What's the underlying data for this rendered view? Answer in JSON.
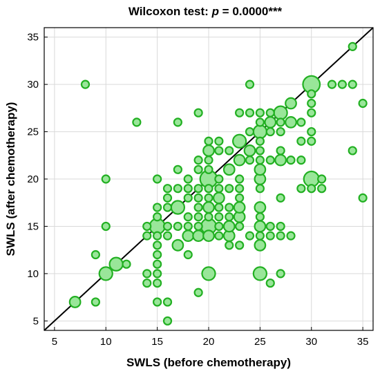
{
  "chart_data": {
    "type": "scatter",
    "title_prefix": "Wilcoxon test: ",
    "title_p": "p",
    "title_suffix": " = 0.0000***",
    "xlabel": "SWLS (before chemotherapy)",
    "ylabel": "SWLS (after chemotherapy)",
    "xlim": [
      4,
      36
    ],
    "ylim": [
      4,
      36
    ],
    "xticks": [
      5,
      10,
      15,
      20,
      25,
      30,
      35
    ],
    "yticks": [
      5,
      10,
      15,
      20,
      25,
      30,
      35
    ],
    "grid": true,
    "reference_line": "y = x",
    "colors": {
      "fill": "#99e699",
      "stroke": "#22b022",
      "line": "#000000",
      "grid": "#d9d9d9"
    },
    "points": [
      {
        "x": 7,
        "y": 7,
        "n": 2
      },
      {
        "x": 8,
        "y": 30,
        "n": 1
      },
      {
        "x": 9,
        "y": 7,
        "n": 1
      },
      {
        "x": 9,
        "y": 12,
        "n": 1
      },
      {
        "x": 10,
        "y": 10,
        "n": 3
      },
      {
        "x": 10,
        "y": 15,
        "n": 1
      },
      {
        "x": 10,
        "y": 20,
        "n": 1
      },
      {
        "x": 11,
        "y": 11,
        "n": 3
      },
      {
        "x": 12,
        "y": 11,
        "n": 1
      },
      {
        "x": 13,
        "y": 26,
        "n": 1
      },
      {
        "x": 14,
        "y": 9,
        "n": 1
      },
      {
        "x": 14,
        "y": 10,
        "n": 1
      },
      {
        "x": 14,
        "y": 14,
        "n": 1
      },
      {
        "x": 14,
        "y": 15,
        "n": 1
      },
      {
        "x": 15,
        "y": 7,
        "n": 1
      },
      {
        "x": 15,
        "y": 9,
        "n": 1
      },
      {
        "x": 15,
        "y": 10,
        "n": 1
      },
      {
        "x": 15,
        "y": 11,
        "n": 1
      },
      {
        "x": 15,
        "y": 12,
        "n": 1
      },
      {
        "x": 15,
        "y": 13,
        "n": 1
      },
      {
        "x": 15,
        "y": 14,
        "n": 1
      },
      {
        "x": 15,
        "y": 15,
        "n": 4
      },
      {
        "x": 15,
        "y": 16,
        "n": 1
      },
      {
        "x": 15,
        "y": 17,
        "n": 1
      },
      {
        "x": 15,
        "y": 20,
        "n": 1
      },
      {
        "x": 16,
        "y": 5,
        "n": 1
      },
      {
        "x": 16,
        "y": 7,
        "n": 1
      },
      {
        "x": 16,
        "y": 14,
        "n": 1
      },
      {
        "x": 16,
        "y": 15,
        "n": 1
      },
      {
        "x": 16,
        "y": 17,
        "n": 1
      },
      {
        "x": 16,
        "y": 18,
        "n": 1
      },
      {
        "x": 16,
        "y": 19,
        "n": 1
      },
      {
        "x": 17,
        "y": 13,
        "n": 2
      },
      {
        "x": 17,
        "y": 15,
        "n": 1
      },
      {
        "x": 17,
        "y": 17,
        "n": 3
      },
      {
        "x": 17,
        "y": 19,
        "n": 1
      },
      {
        "x": 17,
        "y": 21,
        "n": 1
      },
      {
        "x": 17,
        "y": 26,
        "n": 1
      },
      {
        "x": 18,
        "y": 12,
        "n": 1
      },
      {
        "x": 18,
        "y": 14,
        "n": 2
      },
      {
        "x": 18,
        "y": 15,
        "n": 1
      },
      {
        "x": 18,
        "y": 16,
        "n": 1
      },
      {
        "x": 18,
        "y": 18,
        "n": 1
      },
      {
        "x": 18,
        "y": 19,
        "n": 1
      },
      {
        "x": 18,
        "y": 20,
        "n": 1
      },
      {
        "x": 19,
        "y": 8,
        "n": 1
      },
      {
        "x": 19,
        "y": 14,
        "n": 2
      },
      {
        "x": 19,
        "y": 15,
        "n": 1
      },
      {
        "x": 19,
        "y": 16,
        "n": 1
      },
      {
        "x": 19,
        "y": 17,
        "n": 1
      },
      {
        "x": 19,
        "y": 18,
        "n": 1
      },
      {
        "x": 19,
        "y": 19,
        "n": 1
      },
      {
        "x": 19,
        "y": 21,
        "n": 1
      },
      {
        "x": 19,
        "y": 22,
        "n": 1
      },
      {
        "x": 19,
        "y": 27,
        "n": 1
      },
      {
        "x": 20,
        "y": 10,
        "n": 3
      },
      {
        "x": 20,
        "y": 14,
        "n": 2
      },
      {
        "x": 20,
        "y": 15,
        "n": 4
      },
      {
        "x": 20,
        "y": 16,
        "n": 1
      },
      {
        "x": 20,
        "y": 17,
        "n": 2
      },
      {
        "x": 20,
        "y": 18,
        "n": 1
      },
      {
        "x": 20,
        "y": 19,
        "n": 1
      },
      {
        "x": 20,
        "y": 20,
        "n": 5
      },
      {
        "x": 20,
        "y": 21,
        "n": 1
      },
      {
        "x": 20,
        "y": 22,
        "n": 1
      },
      {
        "x": 20,
        "y": 23,
        "n": 2
      },
      {
        "x": 20,
        "y": 24,
        "n": 1
      },
      {
        "x": 21,
        "y": 14,
        "n": 1
      },
      {
        "x": 21,
        "y": 15,
        "n": 1
      },
      {
        "x": 21,
        "y": 16,
        "n": 1
      },
      {
        "x": 21,
        "y": 17,
        "n": 1
      },
      {
        "x": 21,
        "y": 18,
        "n": 2
      },
      {
        "x": 21,
        "y": 19,
        "n": 1
      },
      {
        "x": 21,
        "y": 20,
        "n": 1
      },
      {
        "x": 21,
        "y": 23,
        "n": 1
      },
      {
        "x": 21,
        "y": 24,
        "n": 1
      },
      {
        "x": 22,
        "y": 13,
        "n": 1
      },
      {
        "x": 22,
        "y": 14,
        "n": 2
      },
      {
        "x": 22,
        "y": 15,
        "n": 2
      },
      {
        "x": 22,
        "y": 16,
        "n": 1
      },
      {
        "x": 22,
        "y": 17,
        "n": 1
      },
      {
        "x": 22,
        "y": 19,
        "n": 1
      },
      {
        "x": 22,
        "y": 21,
        "n": 2
      },
      {
        "x": 22,
        "y": 23,
        "n": 1
      },
      {
        "x": 23,
        "y": 13,
        "n": 1
      },
      {
        "x": 23,
        "y": 15,
        "n": 1
      },
      {
        "x": 23,
        "y": 16,
        "n": 2
      },
      {
        "x": 23,
        "y": 17,
        "n": 2
      },
      {
        "x": 23,
        "y": 18,
        "n": 1
      },
      {
        "x": 23,
        "y": 19,
        "n": 1
      },
      {
        "x": 23,
        "y": 20,
        "n": 1
      },
      {
        "x": 23,
        "y": 22,
        "n": 2
      },
      {
        "x": 23,
        "y": 24,
        "n": 3
      },
      {
        "x": 23,
        "y": 27,
        "n": 1
      },
      {
        "x": 24,
        "y": 14,
        "n": 1
      },
      {
        "x": 24,
        "y": 22,
        "n": 1
      },
      {
        "x": 24,
        "y": 23,
        "n": 2
      },
      {
        "x": 24,
        "y": 25,
        "n": 1
      },
      {
        "x": 24,
        "y": 27,
        "n": 1
      },
      {
        "x": 24,
        "y": 30,
        "n": 1
      },
      {
        "x": 25,
        "y": 10,
        "n": 3
      },
      {
        "x": 25,
        "y": 13,
        "n": 2
      },
      {
        "x": 25,
        "y": 14,
        "n": 1
      },
      {
        "x": 25,
        "y": 15,
        "n": 2
      },
      {
        "x": 25,
        "y": 16,
        "n": 1
      },
      {
        "x": 25,
        "y": 17,
        "n": 2
      },
      {
        "x": 25,
        "y": 19,
        "n": 1
      },
      {
        "x": 25,
        "y": 20,
        "n": 2
      },
      {
        "x": 25,
        "y": 21,
        "n": 2
      },
      {
        "x": 25,
        "y": 22,
        "n": 1
      },
      {
        "x": 25,
        "y": 23,
        "n": 1
      },
      {
        "x": 25,
        "y": 24,
        "n": 1
      },
      {
        "x": 25,
        "y": 25,
        "n": 3
      },
      {
        "x": 25,
        "y": 26,
        "n": 1
      },
      {
        "x": 25,
        "y": 27,
        "n": 1
      },
      {
        "x": 26,
        "y": 9,
        "n": 1
      },
      {
        "x": 26,
        "y": 14,
        "n": 1
      },
      {
        "x": 26,
        "y": 15,
        "n": 1
      },
      {
        "x": 26,
        "y": 22,
        "n": 1
      },
      {
        "x": 26,
        "y": 25,
        "n": 1
      },
      {
        "x": 26,
        "y": 26,
        "n": 2
      },
      {
        "x": 26,
        "y": 27,
        "n": 1
      },
      {
        "x": 27,
        "y": 10,
        "n": 1
      },
      {
        "x": 27,
        "y": 14,
        "n": 1
      },
      {
        "x": 27,
        "y": 15,
        "n": 1
      },
      {
        "x": 27,
        "y": 18,
        "n": 1
      },
      {
        "x": 27,
        "y": 22,
        "n": 2
      },
      {
        "x": 27,
        "y": 23,
        "n": 1
      },
      {
        "x": 27,
        "y": 25,
        "n": 1
      },
      {
        "x": 27,
        "y": 26,
        "n": 1
      },
      {
        "x": 27,
        "y": 27,
        "n": 3
      },
      {
        "x": 28,
        "y": 14,
        "n": 1
      },
      {
        "x": 28,
        "y": 22,
        "n": 1
      },
      {
        "x": 28,
        "y": 26,
        "n": 2
      },
      {
        "x": 28,
        "y": 28,
        "n": 2
      },
      {
        "x": 29,
        "y": 19,
        "n": 1
      },
      {
        "x": 29,
        "y": 22,
        "n": 1
      },
      {
        "x": 29,
        "y": 24,
        "n": 1
      },
      {
        "x": 29,
        "y": 26,
        "n": 1
      },
      {
        "x": 30,
        "y": 19,
        "n": 1
      },
      {
        "x": 30,
        "y": 20,
        "n": 4
      },
      {
        "x": 30,
        "y": 24,
        "n": 1
      },
      {
        "x": 30,
        "y": 25,
        "n": 1
      },
      {
        "x": 30,
        "y": 27,
        "n": 1
      },
      {
        "x": 30,
        "y": 28,
        "n": 1
      },
      {
        "x": 30,
        "y": 29,
        "n": 1
      },
      {
        "x": 30,
        "y": 30,
        "n": 5
      },
      {
        "x": 31,
        "y": 19,
        "n": 1
      },
      {
        "x": 31,
        "y": 20,
        "n": 1
      },
      {
        "x": 32,
        "y": 30,
        "n": 1
      },
      {
        "x": 33,
        "y": 30,
        "n": 1
      },
      {
        "x": 34,
        "y": 23,
        "n": 1
      },
      {
        "x": 34,
        "y": 30,
        "n": 1
      },
      {
        "x": 34,
        "y": 34,
        "n": 1
      },
      {
        "x": 35,
        "y": 18,
        "n": 1
      },
      {
        "x": 35,
        "y": 28,
        "n": 1
      }
    ]
  }
}
